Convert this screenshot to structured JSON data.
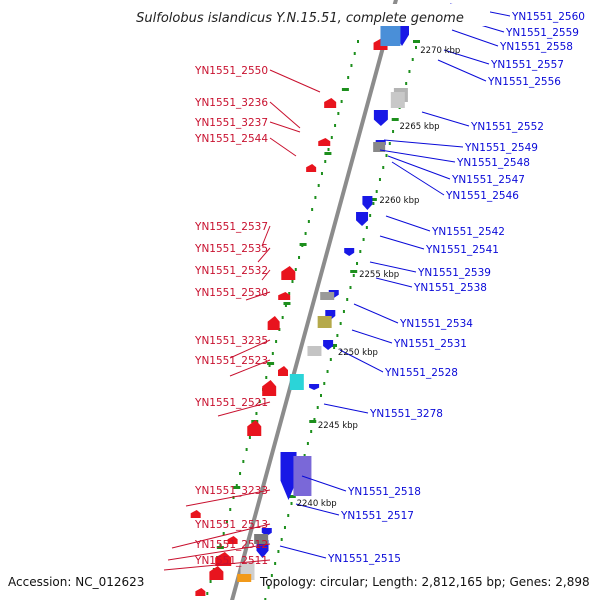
{
  "title": "Sulfolobus islandicus Y.N.15.51, complete genome",
  "accession": "Accession: NC_012623",
  "topology": "Topology: circular; Length: 2,812,165 bp; Genes: 2,898",
  "colors": {
    "forward_gene": "#e8141e",
    "reverse_gene": "#1818e6",
    "backbone": "#8c8c8c",
    "label_left": "#c8102e",
    "label_right": "#0a0ad8",
    "tick": "#1d8f1d"
  },
  "kbp_marks": [
    "2270 kbp",
    "2265 kbp",
    "2260 kbp",
    "2255 kbp",
    "2250 kbp",
    "2245 kbp",
    "2240 kbp"
  ],
  "left_genes": [
    "YN1551_2550",
    "YN1551_3236",
    "YN1551_3237",
    "YN1551_2544",
    "YN1551_2537",
    "YN1551_2535",
    "YN1551_2532",
    "YN1551_2530",
    "YN1551_3235",
    "YN1551_2523",
    "YN1551_2521",
    "YN1551_3233",
    "YN1551_2513",
    "YN1551_2512",
    "YN1551_2511"
  ],
  "right_genes": [
    "YN1551_2560",
    "YN1551_2559",
    "YN1551_2558",
    "YN1551_2557",
    "YN1551_2556",
    "YN1551_2552",
    "YN1551_2549",
    "YN1551_2548",
    "YN1551_2547",
    "YN1551_2546",
    "YN1551_2542",
    "YN1551_2541",
    "YN1551_2539",
    "YN1551_2538",
    "YN1551_2534",
    "YN1551_2531",
    "YN1551_2528",
    "YN1551_3278",
    "YN1551_2518",
    "YN1551_2517",
    "YN1551_2515"
  ]
}
